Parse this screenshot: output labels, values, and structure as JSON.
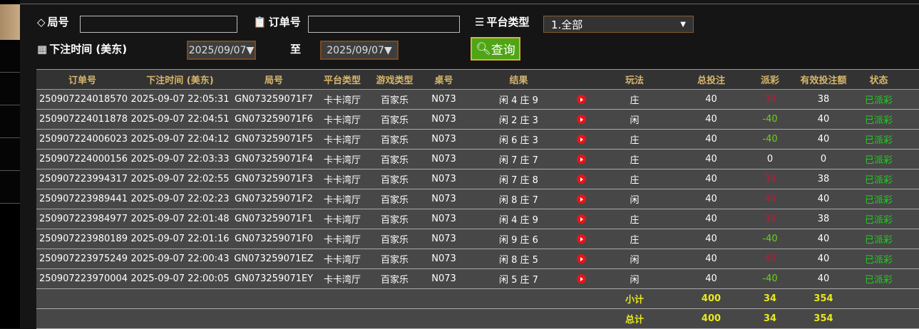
{
  "filters": {
    "round_label": "局号",
    "round_value": "",
    "order_label": "订单号",
    "order_value": "",
    "platform_label": "平台类型",
    "platform_value": "1.全部",
    "time_label": "下注时间 (美东)",
    "date_from": "2025/09/07▼",
    "to_label": "至",
    "date_to": "2025/09/07▼",
    "query_label": "查询"
  },
  "table": {
    "headers": [
      "订单号",
      "下注时间 (美东)",
      "局号",
      "平台类型",
      "游戏类型",
      "桌号",
      "结果",
      "",
      "玩法",
      "总投注",
      "派彩",
      "有效投注额",
      "状态",
      ""
    ],
    "rows": [
      [
        "250907224018570",
        "2025-09-07 22:05:31",
        "GN073259071F7",
        "卡卡湾厅",
        "百家乐",
        "N073",
        "闲 4 庄 9",
        "庄",
        "40",
        "38",
        "38",
        "已派彩"
      ],
      [
        "250907224011878",
        "2025-09-07 22:04:51",
        "GN073259071F6",
        "卡卡湾厅",
        "百家乐",
        "N073",
        "闲 2 庄 3",
        "闲",
        "40",
        "-40",
        "40",
        "已派彩"
      ],
      [
        "250907224006023",
        "2025-09-07 22:04:12",
        "GN073259071F5",
        "卡卡湾厅",
        "百家乐",
        "N073",
        "闲 6 庄 3",
        "庄",
        "40",
        "-40",
        "40",
        "已派彩"
      ],
      [
        "250907224000156",
        "2025-09-07 22:03:33",
        "GN073259071F4",
        "卡卡湾厅",
        "百家乐",
        "N073",
        "闲 7 庄 7",
        "庄",
        "40",
        "0",
        "0",
        "已派彩"
      ],
      [
        "250907223994317",
        "2025-09-07 22:02:55",
        "GN073259071F3",
        "卡卡湾厅",
        "百家乐",
        "N073",
        "闲 7 庄 8",
        "庄",
        "40",
        "38",
        "38",
        "已派彩"
      ],
      [
        "250907223989441",
        "2025-09-07 22:02:23",
        "GN073259071F2",
        "卡卡湾厅",
        "百家乐",
        "N073",
        "闲 8 庄 7",
        "闲",
        "40",
        "40",
        "40",
        "已派彩"
      ],
      [
        "250907223984977",
        "2025-09-07 22:01:48",
        "GN073259071F1",
        "卡卡湾厅",
        "百家乐",
        "N073",
        "闲 4 庄 9",
        "庄",
        "40",
        "38",
        "38",
        "已派彩"
      ],
      [
        "250907223980189",
        "2025-09-07 22:01:16",
        "GN073259071F0",
        "卡卡湾厅",
        "百家乐",
        "N073",
        "闲 9 庄 6",
        "庄",
        "40",
        "-40",
        "40",
        "已派彩"
      ],
      [
        "250907223975249",
        "2025-09-07 22:00:43",
        "GN073259071EZ",
        "卡卡湾厅",
        "百家乐",
        "N073",
        "闲 8 庄 5",
        "闲",
        "40",
        "40",
        "40",
        "已派彩"
      ],
      [
        "250907223970004",
        "2025-09-07 22:00:05",
        "GN073259071EY",
        "卡卡湾厅",
        "百家乐",
        "N073",
        "闲 5 庄 7",
        "闲",
        "40",
        "-40",
        "40",
        "已派彩"
      ]
    ],
    "subtotal": {
      "label": "小计",
      "total_bet": "400",
      "payout": "34",
      "valid_bet": "354"
    },
    "total": {
      "label": "总计",
      "total_bet": "400",
      "payout": "34",
      "valid_bet": "354"
    }
  },
  "colors": {
    "payout_win": "#b0203a",
    "payout_loss": "#6fd020",
    "status": "#22cc22",
    "summary": "#e8e81a",
    "header_text": "#d6b66c",
    "query_button": "#4ea516"
  }
}
